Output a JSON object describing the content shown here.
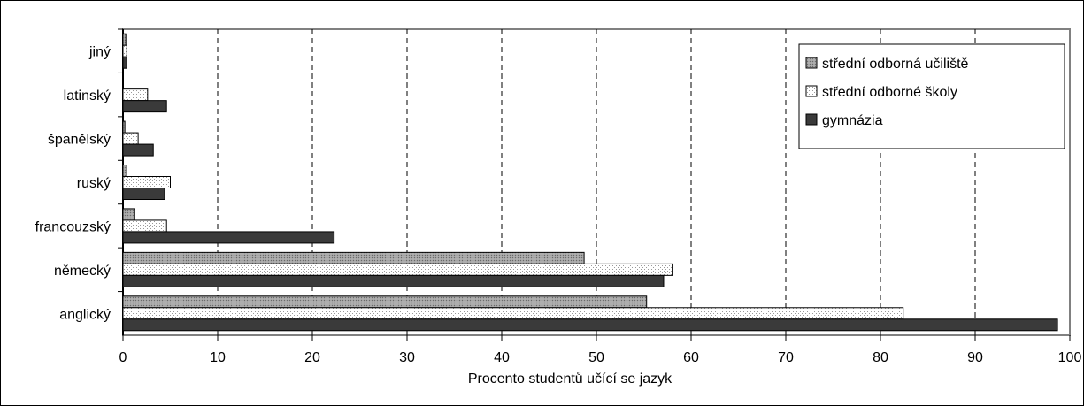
{
  "chart_data": {
    "type": "bar",
    "orientation": "horizontal",
    "categories": [
      "jiný",
      "latinský",
      "španělský",
      "ruský",
      "francouzský",
      "německý",
      "anglický"
    ],
    "series": [
      {
        "name": "střední odborná učiliště",
        "values": [
          0.3,
          0.0,
          0.2,
          0.4,
          1.2,
          48.7,
          55.3
        ]
      },
      {
        "name": "střední odborné školy",
        "values": [
          0.4,
          2.6,
          1.6,
          5.0,
          4.6,
          58.0,
          82.4
        ]
      },
      {
        "name": "gymnázia",
        "values": [
          0.4,
          4.6,
          3.2,
          4.4,
          22.3,
          57.1,
          98.7
        ]
      }
    ],
    "xlabel": "Procento studentů učící se jazyk",
    "xlim": [
      0,
      100
    ],
    "xticks": [
      "0",
      "10",
      "20",
      "30",
      "40",
      "50",
      "60",
      "70",
      "80",
      "90",
      "100"
    ],
    "grid": "vertical dashed",
    "legend_position": "top-right",
    "colors": {
      "series_0": "#a0a0a0",
      "series_1": "#ffffff",
      "series_2": "#3a3a3a",
      "plot_border": "#808080",
      "outer_border": "#000000"
    }
  }
}
